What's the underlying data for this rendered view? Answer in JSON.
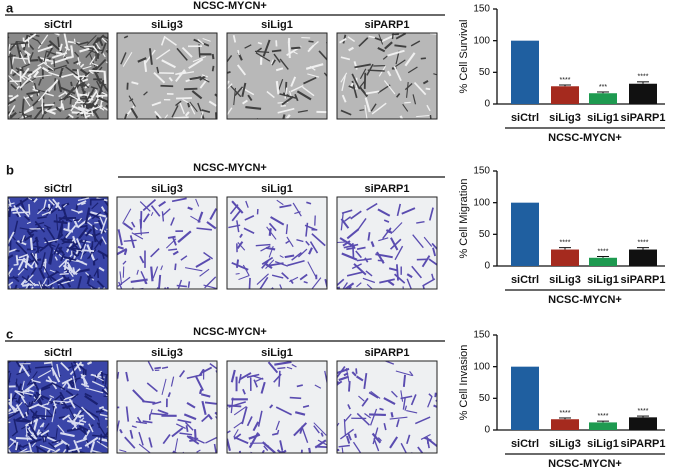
{
  "panels": [
    {
      "label": "a",
      "group_label": "NCSC-MYCN+",
      "image_labels": [
        "siCtrl",
        "siLig3",
        "siLig1",
        "siPARP1"
      ]
    },
    {
      "label": "b",
      "group_label": "NCSC-MYCN+",
      "image_labels": [
        "siCtrl",
        "siLig3",
        "siLig1",
        "siPARP1"
      ]
    },
    {
      "label": "c",
      "group_label": "NCSC-MYCN+",
      "image_labels": [
        "siCtrl",
        "siLig3",
        "siLig1",
        "siPARP1"
      ]
    }
  ],
  "chart_data": [
    {
      "type": "bar",
      "y_label": "% Cell Survival",
      "x_label": "NCSC-MYCN+",
      "categories": [
        "siCtrl",
        "siLig3",
        "siLig1",
        "siPARP1"
      ],
      "values": [
        100,
        28,
        17,
        32
      ],
      "errors": [
        0,
        2,
        2,
        3
      ],
      "annotations": [
        null,
        "****",
        "***",
        "****"
      ],
      "colors": [
        "#1f5fa0",
        "#a52a1e",
        "#1e9a50",
        "#111111"
      ],
      "ylim": [
        0,
        150
      ],
      "yticks": [
        0,
        50,
        100,
        150
      ]
    },
    {
      "type": "bar",
      "y_label": "% Cell Migration",
      "x_label": "NCSC-MYCN+",
      "categories": [
        "siCtrl",
        "siLig3",
        "siLig1",
        "siPARP1"
      ],
      "values": [
        100,
        26,
        13,
        26
      ],
      "errors": [
        0,
        3,
        2,
        3
      ],
      "annotations": [
        null,
        "****",
        "****",
        "****"
      ],
      "colors": [
        "#1f5fa0",
        "#a52a1e",
        "#1e9a50",
        "#111111"
      ],
      "ylim": [
        0,
        150
      ],
      "yticks": [
        0,
        50,
        100,
        150
      ]
    },
    {
      "type": "bar",
      "y_label": "% Cell Invasion",
      "x_label": "NCSC-MYCN+",
      "categories": [
        "siCtrl",
        "siLig3",
        "siLig1",
        "siPARP1"
      ],
      "values": [
        100,
        17,
        12,
        20
      ],
      "errors": [
        0,
        2,
        2,
        2
      ],
      "annotations": [
        null,
        "****",
        "****",
        "****"
      ],
      "colors": [
        "#1f5fa0",
        "#a52a1e",
        "#1e9a50",
        "#111111"
      ],
      "ylim": [
        0,
        150
      ],
      "yticks": [
        0,
        50,
        100,
        150
      ]
    }
  ]
}
